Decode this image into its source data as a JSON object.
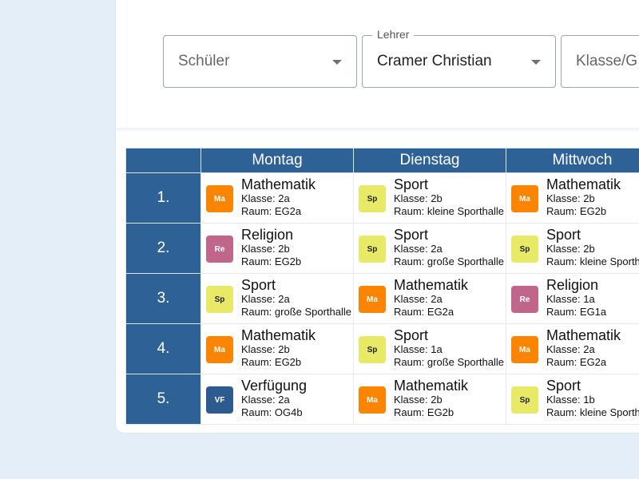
{
  "filters": {
    "schueler": {
      "placeholder": "Schüler"
    },
    "lehrer": {
      "label": "Lehrer",
      "value": "Cramer Christian"
    },
    "klasse": {
      "placeholder": "Klasse/G"
    }
  },
  "timetable": {
    "days": [
      "Montag",
      "Dienstag",
      "Mittwoch"
    ],
    "periods": [
      "1.",
      "2.",
      "3.",
      "4.",
      "5."
    ],
    "subject_colors": {
      "Ma": {
        "bg": "#fb8500",
        "fg": "#ffffff"
      },
      "Sp": {
        "bg": "#e8ea67",
        "fg": "#222222"
      },
      "Re": {
        "bg": "#c0668a",
        "fg": "#ffffff"
      },
      "VF": {
        "bg": "#2e5b8f",
        "fg": "#ffffff"
      }
    },
    "rows": [
      [
        {
          "abbr": "Ma",
          "subject": "Mathematik",
          "klasse": "Klasse: 2a",
          "raum": "Raum: EG2a"
        },
        {
          "abbr": "Sp",
          "subject": "Sport",
          "klasse": "Klasse: 2b",
          "raum": "Raum: kleine Sporthalle"
        },
        {
          "abbr": "Ma",
          "subject": "Mathematik",
          "klasse": "Klasse: 2b",
          "raum": "Raum: EG2b"
        }
      ],
      [
        {
          "abbr": "Re",
          "subject": "Religion",
          "klasse": "Klasse: 2b",
          "raum": "Raum: EG2b"
        },
        {
          "abbr": "Sp",
          "subject": "Sport",
          "klasse": "Klasse: 2a",
          "raum": "Raum: große Sporthalle"
        },
        {
          "abbr": "Sp",
          "subject": "Sport",
          "klasse": "Klasse: 2b",
          "raum": "Raum: kleine Sporthalle"
        }
      ],
      [
        {
          "abbr": "Sp",
          "subject": "Sport",
          "klasse": "Klasse: 2a",
          "raum": "Raum: große Sporthalle"
        },
        {
          "abbr": "Ma",
          "subject": "Mathematik",
          "klasse": "Klasse: 2a",
          "raum": "Raum: EG2a"
        },
        {
          "abbr": "Re",
          "subject": "Religion",
          "klasse": "Klasse: 1a",
          "raum": "Raum: EG1a"
        }
      ],
      [
        {
          "abbr": "Ma",
          "subject": "Mathematik",
          "klasse": "Klasse: 2b",
          "raum": "Raum: EG2b"
        },
        {
          "abbr": "Sp",
          "subject": "Sport",
          "klasse": "Klasse: 1a",
          "raum": "Raum: große Sporthalle"
        },
        {
          "abbr": "Ma",
          "subject": "Mathematik",
          "klasse": "Klasse: 2a",
          "raum": "Raum: EG2a"
        }
      ],
      [
        {
          "abbr": "VF",
          "subject": "Verfügung",
          "klasse": "Klasse: 2a",
          "raum": "Raum: OG4b"
        },
        {
          "abbr": "Ma",
          "subject": "Mathematik",
          "klasse": "Klasse: 2b",
          "raum": "Raum: EG2b"
        },
        {
          "abbr": "Sp",
          "subject": "Sport",
          "klasse": "Klasse: 1b",
          "raum": "Raum: kleine Sporthalle"
        }
      ]
    ]
  }
}
